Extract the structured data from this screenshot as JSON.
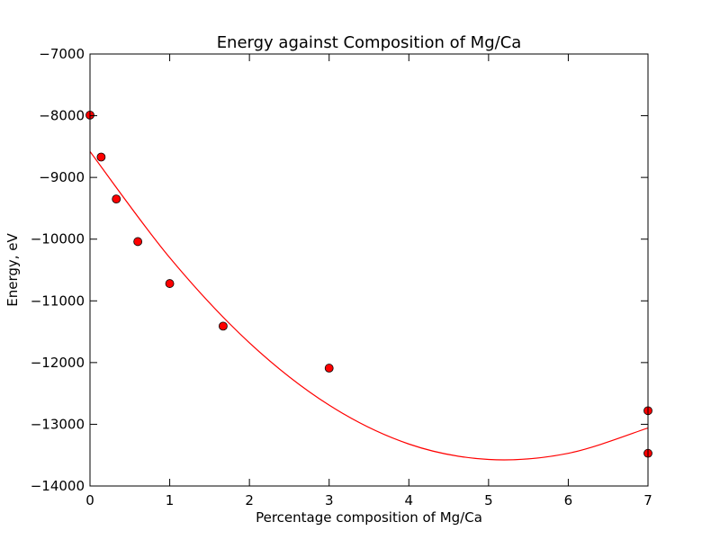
{
  "chart_data": {
    "type": "scatter",
    "title": "Energy against Composition of Mg/Ca",
    "xlabel": "Percentage composition of Mg/Ca",
    "ylabel": "Energy, eV",
    "xlim": [
      0,
      7
    ],
    "ylim": [
      -14000,
      -7000
    ],
    "x_ticks": [
      0,
      1,
      2,
      3,
      4,
      5,
      6,
      7
    ],
    "x_tick_labels": [
      "0",
      "1",
      "2",
      "3",
      "4",
      "5",
      "6",
      "7"
    ],
    "y_ticks": [
      -14000,
      -13000,
      -12000,
      -11000,
      -10000,
      -9000,
      -8000,
      -7000
    ],
    "y_tick_labels": [
      "−14000",
      "−13000",
      "−12000",
      "−11000",
      "−10000",
      "−9000",
      "−8000",
      "−7000"
    ],
    "grid": false,
    "series": [
      {
        "kind": "scatter",
        "color": "#ff0000",
        "points": [
          {
            "x": 0.0,
            "y": -7990
          },
          {
            "x": 0.14,
            "y": -8670
          },
          {
            "x": 0.33,
            "y": -9350
          },
          {
            "x": 0.6,
            "y": -10040
          },
          {
            "x": 1.0,
            "y": -10720
          },
          {
            "x": 1.67,
            "y": -11410
          },
          {
            "x": 3.0,
            "y": -12090
          },
          {
            "x": 7.0,
            "y": -12780
          },
          {
            "x": 7.0,
            "y": -13470
          }
        ]
      },
      {
        "kind": "line",
        "color": "#ff0000",
        "points": [
          {
            "x": 0.0,
            "y": -8580
          },
          {
            "x": 1.0,
            "y": -10300
          },
          {
            "x": 2.0,
            "y": -11680
          },
          {
            "x": 3.0,
            "y": -12690
          },
          {
            "x": 4.0,
            "y": -13320
          },
          {
            "x": 5.0,
            "y": -13570
          },
          {
            "x": 6.0,
            "y": -13470
          },
          {
            "x": 7.0,
            "y": -13060
          }
        ]
      }
    ]
  }
}
